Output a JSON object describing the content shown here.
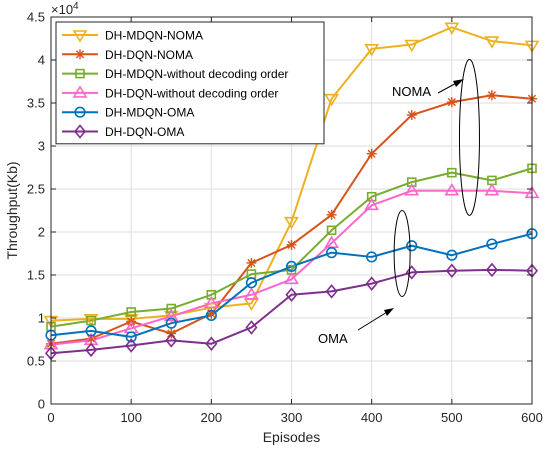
{
  "chart_data": {
    "type": "line",
    "title": "",
    "xlabel": "Episodes",
    "ylabel": "Throughput(Kb)",
    "y_multiplier_base": "×10",
    "y_multiplier_exp": "4",
    "xlim": [
      0,
      600
    ],
    "ylim": [
      0,
      4.5
    ],
    "xticks": [
      "0",
      "100",
      "200",
      "300",
      "400",
      "500",
      "600"
    ],
    "yticks": [
      "0",
      "0.5",
      "1",
      "1.5",
      "2",
      "2.5",
      "3",
      "3.5",
      "4",
      "4.5"
    ],
    "grid": true,
    "legend_position": "top-left",
    "x": [
      0,
      50,
      100,
      150,
      200,
      250,
      300,
      350,
      400,
      450,
      500,
      550,
      600
    ],
    "series": [
      {
        "name": "DH-MDQN-NOMA",
        "color": "#EDB120",
        "marker": "triangle-down",
        "values": [
          0.97,
          0.99,
          0.99,
          1.03,
          1.12,
          1.17,
          2.12,
          3.55,
          4.13,
          4.18,
          4.38,
          4.22,
          4.17
        ]
      },
      {
        "name": "DH-DQN-NOMA",
        "color": "#D95319",
        "marker": "asterisk",
        "values": [
          0.7,
          0.76,
          0.96,
          0.82,
          1.05,
          1.64,
          1.85,
          2.2,
          2.91,
          3.36,
          3.51,
          3.59,
          3.55
        ]
      },
      {
        "name": "DH-MDQN-without decoding order",
        "color": "#77AC30",
        "marker": "square",
        "values": [
          0.9,
          0.97,
          1.07,
          1.11,
          1.27,
          1.51,
          1.56,
          2.02,
          2.41,
          2.58,
          2.69,
          2.6,
          2.74
        ]
      },
      {
        "name": "DH-DQN-without decoding order",
        "color": "#FF66CC",
        "marker": "triangle-up",
        "values": [
          0.69,
          0.74,
          0.88,
          1.02,
          1.17,
          1.27,
          1.45,
          1.87,
          2.31,
          2.48,
          2.48,
          2.48,
          2.45
        ]
      },
      {
        "name": "DH-MDQN-OMA",
        "color": "#0072BD",
        "marker": "circle",
        "values": [
          0.8,
          0.85,
          0.78,
          0.94,
          1.03,
          1.41,
          1.6,
          1.76,
          1.71,
          1.84,
          1.73,
          1.86,
          1.98
        ]
      },
      {
        "name": "DH-DQN-OMA",
        "color": "#7E2F8E",
        "marker": "diamond",
        "values": [
          0.59,
          0.63,
          0.68,
          0.74,
          0.7,
          0.89,
          1.27,
          1.31,
          1.4,
          1.53,
          1.55,
          1.56,
          1.55
        ]
      }
    ],
    "annotations": [
      {
        "text": "NOMA",
        "ellipse_center": [
          522,
          3.1
        ]
      },
      {
        "text": "OMA",
        "ellipse_center": [
          438,
          1.75
        ]
      }
    ]
  }
}
